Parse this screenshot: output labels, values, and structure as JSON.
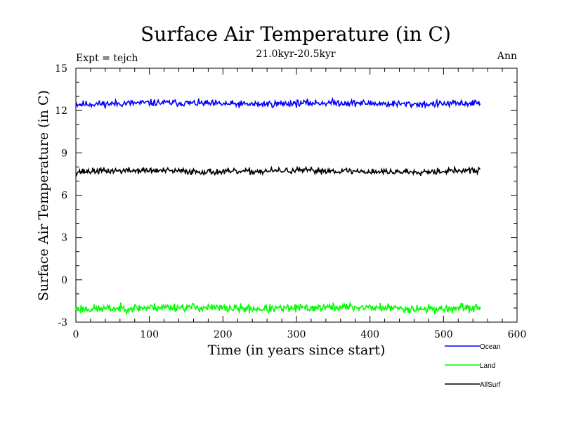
{
  "chart_data": {
    "type": "line",
    "title": "Surface Air Temperature (in C)",
    "subtitle": "21.0kyr-20.5kyr",
    "label_left": "Expt = tejch",
    "label_right": "Ann",
    "xlabel": "Time (in years since start)",
    "ylabel": "Surface Air Temperature (in C)",
    "xlim": [
      0,
      600
    ],
    "ylim": [
      -3,
      15
    ],
    "xticks": [
      0,
      100,
      200,
      300,
      400,
      500,
      600
    ],
    "yticks": [
      -3,
      0,
      3,
      6,
      9,
      12,
      15
    ],
    "x_range": [
      0,
      550
    ],
    "series": [
      {
        "name": "Ocean",
        "color": "#0000ff",
        "mean": 12.5,
        "noise": 0.12,
        "seed": 11
      },
      {
        "name": "Land",
        "color": "#00ff00",
        "mean": -2.0,
        "noise": 0.15,
        "seed": 23
      },
      {
        "name": "AllSurf",
        "color": "#000000",
        "mean": 7.7,
        "noise": 0.11,
        "seed": 37
      }
    ]
  }
}
